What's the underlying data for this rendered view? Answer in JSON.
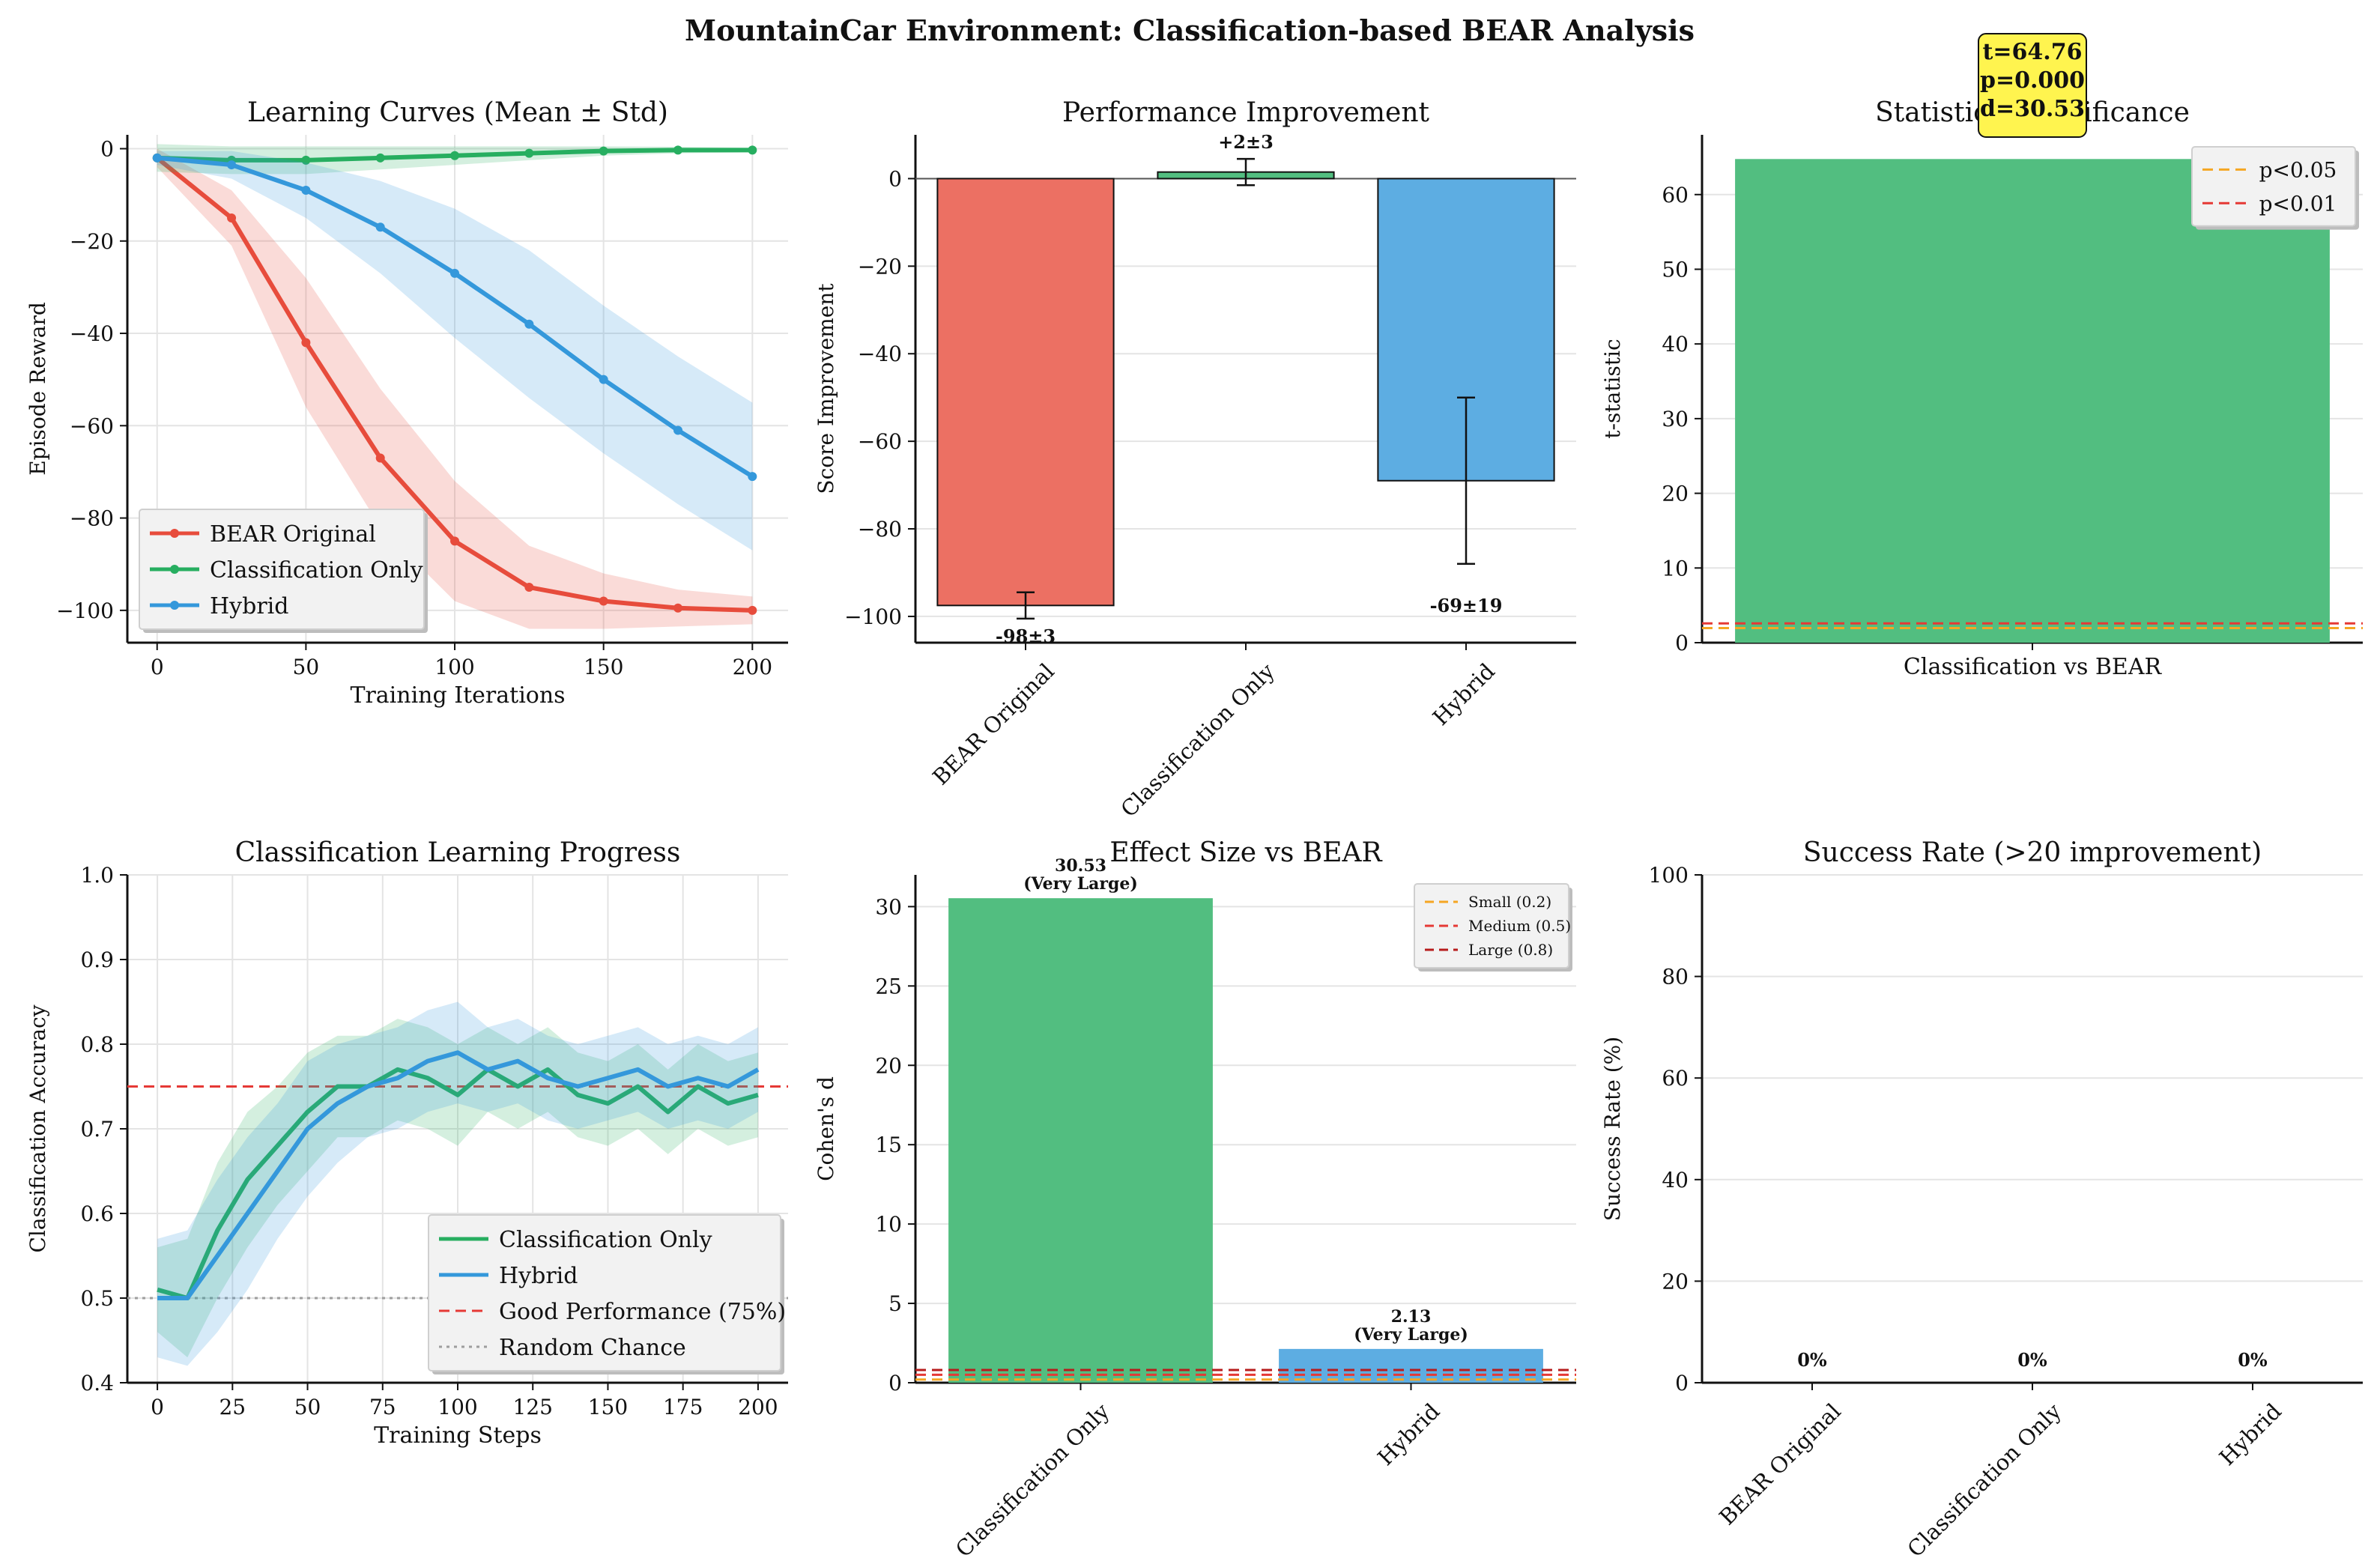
{
  "figure_title": "MountainCar Environment: Classification-based BEAR Analysis",
  "colors": {
    "red": "#e74c3c",
    "green": "#27ae60",
    "blue": "#3498db",
    "bar_red": "#ec7063",
    "bar_green": "#52be80",
    "bar_blue": "#5dade2",
    "orange": "#f5a623"
  },
  "chart_data": [
    {
      "id": "learning_curves",
      "type": "line",
      "title": "Learning Curves (Mean ± Std)",
      "xlabel": "Training Iterations",
      "ylabel": "Episode Reward",
      "xlim": [
        -10,
        212
      ],
      "ylim": [
        -107,
        3
      ],
      "xticks": [
        0,
        50,
        100,
        150,
        200
      ],
      "yticks": [
        0,
        -20,
        -40,
        -60,
        -80,
        -100
      ],
      "legend_position": "lower-left",
      "series": [
        {
          "name": "BEAR Original",
          "color": "#e74c3c",
          "x": [
            0,
            25,
            50,
            75,
            100,
            125,
            150,
            175,
            200
          ],
          "y": [
            -2,
            -15,
            -42,
            -67,
            -85,
            -95,
            -98,
            -99.5,
            -100
          ],
          "std": [
            2,
            6,
            14,
            15,
            13,
            9,
            6,
            4,
            3
          ]
        },
        {
          "name": "Classification Only",
          "color": "#27ae60",
          "x": [
            0,
            25,
            50,
            75,
            100,
            125,
            150,
            175,
            200
          ],
          "y": [
            -2,
            -2.5,
            -2.5,
            -2,
            -1.5,
            -1,
            -0.5,
            -0.3,
            -0.3
          ],
          "std": [
            3,
            3,
            3,
            2.5,
            2,
            1.5,
            1,
            0.7,
            0.5
          ]
        },
        {
          "name": "Hybrid",
          "color": "#3498db",
          "x": [
            0,
            25,
            50,
            75,
            100,
            125,
            150,
            175,
            200
          ],
          "y": [
            -2,
            -3.5,
            -9,
            -17,
            -27,
            -38,
            -50,
            -61,
            -71
          ],
          "std": [
            1.5,
            3,
            6,
            10,
            14,
            16,
            16,
            16,
            16
          ]
        }
      ]
    },
    {
      "id": "performance_improvement",
      "type": "bar",
      "title": "Performance Improvement",
      "ylabel": "Score Improvement",
      "categories": [
        "BEAR Original",
        "Classification Only",
        "Hybrid"
      ],
      "values": [
        -97.5,
        1.5,
        -69
      ],
      "errors": [
        3,
        3,
        19
      ],
      "value_labels": [
        "-98±3",
        "+2±3",
        "-69±19"
      ],
      "ylim": [
        -106,
        10
      ],
      "yticks": [
        0,
        -20,
        -40,
        -60,
        -80,
        -100
      ]
    },
    {
      "id": "statistical_significance",
      "type": "bar",
      "title": "Statistical Significance",
      "ylabel": "t-statistic",
      "categories": [
        "Classification vs BEAR"
      ],
      "values": [
        64.76
      ],
      "ylim": [
        0,
        68
      ],
      "yticks": [
        0,
        10,
        20,
        30,
        40,
        50,
        60
      ],
      "thresholds": [
        {
          "label": "p<0.05",
          "value": 1.96,
          "color": "#f5a623"
        },
        {
          "label": "p<0.01",
          "value": 2.58,
          "color": "#e53935"
        }
      ],
      "annotation_lines": [
        "t=64.76",
        "p=0.000",
        "d=30.53"
      ],
      "legend_position": "top-right"
    },
    {
      "id": "classification_learning",
      "type": "line",
      "title": "Classification Learning Progress",
      "xlabel": "Training Steps",
      "ylabel": "Classification Accuracy",
      "xlim": [
        -10,
        210
      ],
      "ylim": [
        0.4,
        1.0
      ],
      "xticks": [
        0,
        25,
        50,
        75,
        100,
        125,
        150,
        175,
        200
      ],
      "yticks": [
        0.4,
        0.5,
        0.6,
        0.7,
        0.8,
        0.9,
        1.0
      ],
      "legend_position": "lower-right",
      "series": [
        {
          "name": "Classification Only",
          "color": "#27ae60",
          "x": [
            0,
            10,
            20,
            30,
            40,
            50,
            60,
            70,
            80,
            90,
            100,
            110,
            120,
            130,
            140,
            150,
            160,
            170,
            180,
            190,
            200
          ],
          "y": [
            0.51,
            0.5,
            0.58,
            0.64,
            0.68,
            0.72,
            0.75,
            0.75,
            0.77,
            0.76,
            0.74,
            0.77,
            0.75,
            0.77,
            0.74,
            0.73,
            0.75,
            0.72,
            0.75,
            0.73,
            0.74
          ],
          "std": [
            0.05,
            0.07,
            0.08,
            0.08,
            0.07,
            0.07,
            0.06,
            0.06,
            0.06,
            0.06,
            0.06,
            0.05,
            0.05,
            0.05,
            0.05,
            0.05,
            0.05,
            0.05,
            0.05,
            0.05,
            0.05
          ]
        },
        {
          "name": "Hybrid",
          "color": "#3498db",
          "x": [
            0,
            10,
            20,
            30,
            40,
            50,
            60,
            70,
            80,
            90,
            100,
            110,
            120,
            130,
            140,
            150,
            160,
            170,
            180,
            190,
            200
          ],
          "y": [
            0.5,
            0.5,
            0.55,
            0.6,
            0.65,
            0.7,
            0.73,
            0.75,
            0.76,
            0.78,
            0.79,
            0.77,
            0.78,
            0.76,
            0.75,
            0.76,
            0.77,
            0.75,
            0.76,
            0.75,
            0.77
          ],
          "std": [
            0.07,
            0.08,
            0.09,
            0.09,
            0.08,
            0.08,
            0.07,
            0.06,
            0.06,
            0.06,
            0.06,
            0.05,
            0.05,
            0.05,
            0.05,
            0.05,
            0.05,
            0.05,
            0.05,
            0.05,
            0.05
          ]
        }
      ],
      "reference_lines": [
        {
          "label": "Good Performance (75%)",
          "value": 0.75,
          "color": "#e53935",
          "style": "dashed"
        },
        {
          "label": "Random Chance",
          "value": 0.5,
          "color": "#9e9e9e",
          "style": "dotted"
        }
      ]
    },
    {
      "id": "effect_size",
      "type": "bar",
      "title": "Effect Size vs BEAR",
      "ylabel": "Cohen's d",
      "categories": [
        "Classification Only",
        "Hybrid"
      ],
      "values": [
        30.53,
        2.13
      ],
      "value_labels": [
        [
          "30.53",
          "(Very Large)"
        ],
        [
          "2.13",
          "(Very Large)"
        ]
      ],
      "ylim": [
        0,
        32
      ],
      "yticks": [
        0,
        5,
        10,
        15,
        20,
        25,
        30
      ],
      "thresholds": [
        {
          "label": "Small (0.2)",
          "value": 0.2,
          "color": "#f5a623"
        },
        {
          "label": "Medium (0.5)",
          "value": 0.5,
          "color": "#e53935"
        },
        {
          "label": "Large (0.8)",
          "value": 0.8,
          "color": "#b71c1c"
        }
      ],
      "legend_position": "top-right"
    },
    {
      "id": "success_rate",
      "type": "bar",
      "title": "Success Rate (>20 improvement)",
      "ylabel": "Success Rate (%)",
      "categories": [
        "BEAR Original",
        "Classification Only",
        "Hybrid"
      ],
      "values": [
        0,
        0,
        0
      ],
      "value_labels": [
        "0%",
        "0%",
        "0%"
      ],
      "ylim": [
        0,
        100
      ],
      "yticks": [
        0,
        20,
        40,
        60,
        80,
        100
      ]
    }
  ]
}
